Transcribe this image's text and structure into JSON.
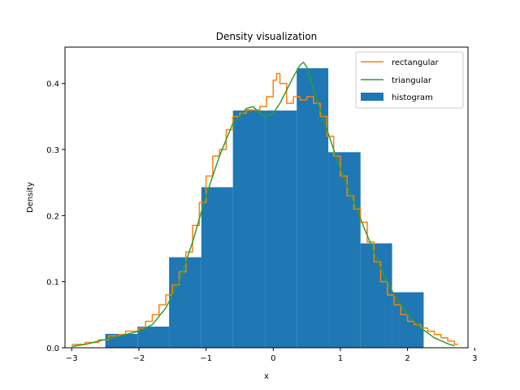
{
  "chart_data": {
    "type": "bar",
    "title": "Density visualization",
    "xlabel": "x",
    "ylabel": "Density",
    "xlim": [
      -3.1,
      2.9
    ],
    "ylim": [
      0,
      0.455
    ],
    "x_ticks": [
      -3,
      -2,
      -1,
      0,
      1,
      2,
      3
    ],
    "y_ticks": [
      0.0,
      0.1,
      0.2,
      0.3,
      0.4
    ],
    "y_tick_labels": [
      "0.0",
      "0.1",
      "0.2",
      "0.3",
      "0.4"
    ],
    "grid": false,
    "legend_position": "top-right",
    "histogram": {
      "name": "histogram",
      "color": "#1f77b4",
      "bin_edges": [
        -2.5,
        -2.02,
        -1.55,
        -1.07,
        -0.6,
        -0.12,
        0.35,
        0.82,
        1.3,
        1.77,
        2.24
      ],
      "values": [
        0.021,
        0.032,
        0.137,
        0.243,
        0.359,
        0.359,
        0.423,
        0.296,
        0.158,
        0.084
      ]
    },
    "series": [
      {
        "name": "rectangular",
        "color": "#ff7f0e",
        "step": true,
        "x": [
          -3.0,
          -2.8,
          -2.6,
          -2.45,
          -2.3,
          -2.2,
          -2.1,
          -2.0,
          -1.9,
          -1.8,
          -1.7,
          -1.6,
          -1.5,
          -1.4,
          -1.3,
          -1.2,
          -1.1,
          -1.0,
          -0.9,
          -0.8,
          -0.7,
          -0.6,
          -0.5,
          -0.4,
          -0.3,
          -0.2,
          -0.1,
          0.0,
          0.05,
          0.1,
          0.2,
          0.3,
          0.4,
          0.5,
          0.6,
          0.7,
          0.8,
          0.9,
          1.0,
          1.1,
          1.2,
          1.3,
          1.4,
          1.5,
          1.6,
          1.7,
          1.8,
          1.9,
          2.0,
          2.1,
          2.2,
          2.3,
          2.4,
          2.5,
          2.6,
          2.7,
          2.75
        ],
        "y": [
          0.005,
          0.008,
          0.012,
          0.018,
          0.02,
          0.025,
          0.025,
          0.03,
          0.04,
          0.05,
          0.065,
          0.08,
          0.095,
          0.115,
          0.145,
          0.185,
          0.22,
          0.26,
          0.29,
          0.3,
          0.33,
          0.35,
          0.355,
          0.36,
          0.36,
          0.365,
          0.38,
          0.405,
          0.415,
          0.4,
          0.37,
          0.38,
          0.375,
          0.38,
          0.37,
          0.35,
          0.32,
          0.29,
          0.26,
          0.23,
          0.21,
          0.19,
          0.16,
          0.13,
          0.1,
          0.08,
          0.065,
          0.05,
          0.04,
          0.035,
          0.03,
          0.025,
          0.02,
          0.015,
          0.01,
          0.005,
          0.005
        ]
      },
      {
        "name": "triangular",
        "color": "#2ca02c",
        "step": false,
        "x": [
          -3.0,
          -2.8,
          -2.6,
          -2.4,
          -2.2,
          -2.0,
          -1.8,
          -1.6,
          -1.4,
          -1.2,
          -1.0,
          -0.8,
          -0.6,
          -0.4,
          -0.3,
          -0.2,
          -0.1,
          0.0,
          0.1,
          0.2,
          0.3,
          0.4,
          0.45,
          0.5,
          0.6,
          0.7,
          0.8,
          0.9,
          1.0,
          1.2,
          1.4,
          1.6,
          1.8,
          2.0,
          2.2,
          2.4,
          2.6,
          2.7
        ],
        "y": [
          0.002,
          0.005,
          0.01,
          0.015,
          0.02,
          0.025,
          0.035,
          0.06,
          0.1,
          0.16,
          0.23,
          0.29,
          0.34,
          0.362,
          0.365,
          0.355,
          0.35,
          0.355,
          0.37,
          0.39,
          0.41,
          0.428,
          0.432,
          0.425,
          0.39,
          0.36,
          0.33,
          0.3,
          0.27,
          0.22,
          0.17,
          0.12,
          0.08,
          0.05,
          0.03,
          0.015,
          0.006,
          0.003
        ]
      }
    ],
    "legend": [
      "rectangular",
      "triangular",
      "histogram"
    ]
  }
}
